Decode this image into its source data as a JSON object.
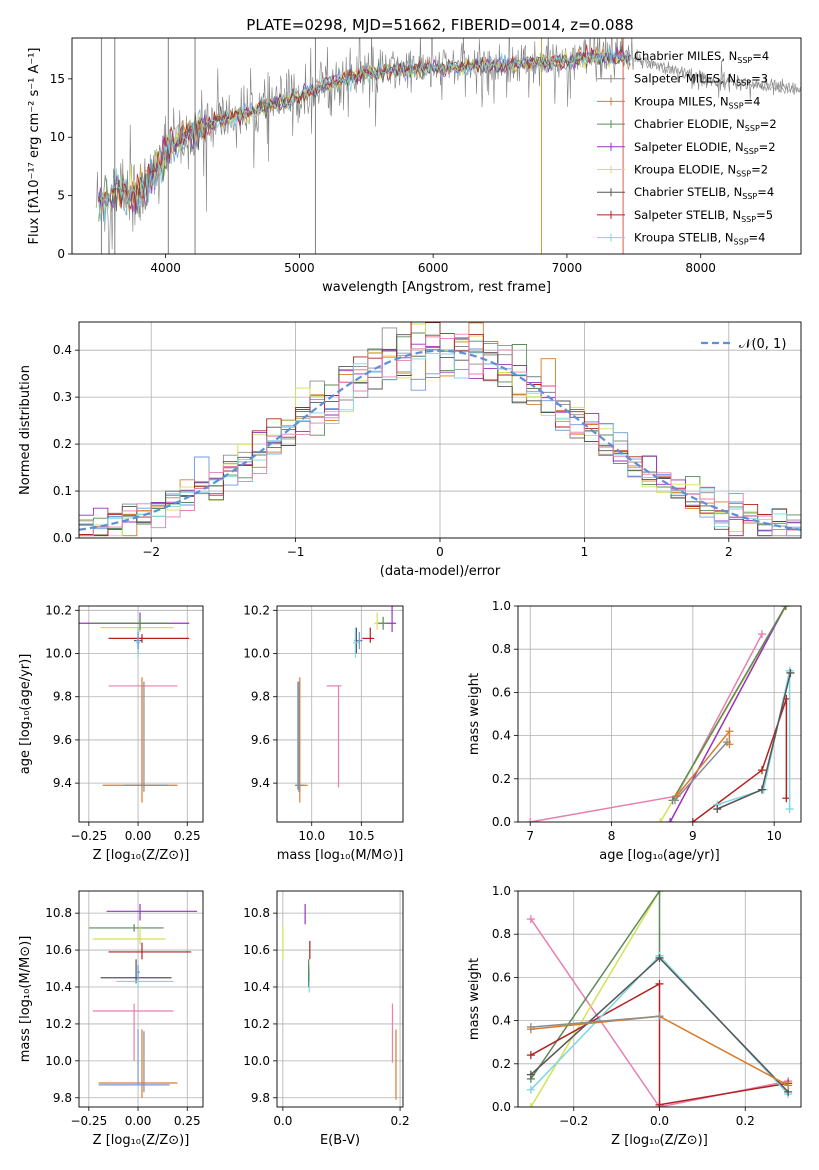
{
  "figure_title": "PLATE=0298, MJD=51662, FIBERID=0014, z=0.088",
  "colors": {
    "chabrier_miles": "#6d9be0",
    "salpeter_miles": "#8c8c8c",
    "kroupa_miles": "#d97c2d",
    "chabrier_elodie": "#5c8a5a",
    "salpeter_elodie": "#9933bb",
    "kroupa_elodie": "#d4e157",
    "chabrier_stelib": "#555555",
    "salpeter_stelib": "#b22222",
    "kroupa_stelib": "#7fd6e0",
    "gaussian": "#5b8fd9",
    "pink": "#e87fb0"
  },
  "chart_data": [
    {
      "id": "spectrum",
      "type": "line",
      "title": "PLATE=0298, MJD=51662, FIBERID=0014, z=0.088",
      "xlabel": "wavelength [Angstrom, rest frame]",
      "ylabel": "Flux [fλ10⁻¹⁷ erg cm⁻² s⁻¹ A⁻¹]",
      "xlim": [
        3300,
        8750
      ],
      "ylim": [
        0,
        18.5
      ],
      "xticks": [
        4000,
        5000,
        6000,
        7000,
        8000
      ],
      "yticks": [
        0,
        5,
        10,
        15
      ],
      "grid": false,
      "legend_position": "top-right",
      "legend": [
        {
          "label": "Chabrier MILES, N",
          "sub": "SSP",
          "suffix": "=4",
          "color": "#6d9be0"
        },
        {
          "label": "Salpeter MILES, N",
          "sub": "SSP",
          "suffix": "=3",
          "color": "#8c8c8c"
        },
        {
          "label": "Kroupa MILES, N",
          "sub": "SSP",
          "suffix": "=4",
          "color": "#d97c2d"
        },
        {
          "label": "Chabrier ELODIE, N",
          "sub": "SSP",
          "suffix": "=2",
          "color": "#5c8a5a"
        },
        {
          "label": "Salpeter ELODIE, N",
          "sub": "SSP",
          "suffix": "=2",
          "color": "#9933bb"
        },
        {
          "label": "Kroupa ELODIE, N",
          "sub": "SSP",
          "suffix": "=2",
          "color": "#d4e157"
        },
        {
          "label": "Chabrier STELIB, N",
          "sub": "SSP",
          "suffix": "=4",
          "color": "#555555"
        },
        {
          "label": "Salpeter STELIB, N",
          "sub": "SSP",
          "suffix": "=5",
          "color": "#b22222"
        },
        {
          "label": "Kroupa STELIB, N",
          "sub": "SSP",
          "suffix": "=4",
          "color": "#7fd6e0"
        }
      ],
      "continuum_trend": {
        "x": [
          3500,
          3650,
          3750,
          3850,
          3950,
          4050,
          4200,
          4400,
          4600,
          4800,
          5000,
          5200,
          5500,
          5800,
          6100,
          6400,
          6700,
          7000,
          7200,
          7400,
          7600,
          7800,
          8000,
          8200,
          8400,
          8600,
          8750
        ],
        "y": [
          4.5,
          5.5,
          5.0,
          5.5,
          7.5,
          9.5,
          10.5,
          11.5,
          12.0,
          12.8,
          13.5,
          14.5,
          15.5,
          15.8,
          16.0,
          16.1,
          16.3,
          16.5,
          16.8,
          16.9,
          16.4,
          15.8,
          15.0,
          14.8,
          14.5,
          14.2,
          14.0
        ]
      },
      "sky_lines": [
        3520,
        3620,
        4020,
        4220,
        5120,
        6810,
        7420
      ]
    },
    {
      "id": "residuals",
      "type": "area",
      "xlabel": "(data-model)/error",
      "ylabel": "Normed distribution",
      "xlim": [
        -2.5,
        2.5
      ],
      "ylim": [
        0,
        0.46
      ],
      "xticks": [
        -2,
        -1,
        0,
        1,
        2
      ],
      "yticks": [
        0.0,
        0.1,
        0.2,
        0.3,
        0.4
      ],
      "grid": true,
      "legend_position": "top-right",
      "legend_label": "𝒩(0, 1)",
      "gaussian": {
        "mean": 0,
        "sigma": 1
      },
      "bin_width": 0.1
    },
    {
      "id": "age_vs_Z",
      "type": "scatter",
      "xlabel": "Z [log₁₀(Z/Z⊙)]",
      "ylabel": "age  [log₁₀(age/yr)]",
      "xlim": [
        -0.3,
        0.33
      ],
      "ylim": [
        9.22,
        10.22
      ],
      "xticks": [
        -0.25,
        0.0,
        0.25
      ],
      "yticks": [
        9.4,
        9.6,
        9.8,
        10.0,
        10.2
      ],
      "grid": true,
      "points": [
        {
          "x": 0.01,
          "y": 10.14,
          "xerr": [
            0.31,
            0.25
          ],
          "yerr": [
            0.04,
            0.05
          ],
          "color": "#9933bb"
        },
        {
          "x": 0.01,
          "y": 10.12,
          "xerr": [
            0.2,
            0.17
          ],
          "yerr": [
            0.02,
            0.03
          ],
          "color": "#d4e157"
        },
        {
          "x": 0.01,
          "y": 10.14,
          "xerr": [
            0.25,
            0.15
          ],
          "yerr": [
            0.03,
            0.03
          ],
          "color": "#5c8a5a"
        },
        {
          "x": 0.02,
          "y": 10.07,
          "xerr": [
            0.17,
            0.24
          ],
          "yerr": [
            0.02,
            0.02
          ],
          "color": "#b22222"
        },
        {
          "x": 0.0,
          "y": 10.06,
          "xerr": [
            0.02,
            0.02
          ],
          "yerr": [
            0.06,
            0.06
          ],
          "color": "#555555"
        },
        {
          "x": 0.0,
          "y": 10.05,
          "xerr": [
            0.01,
            0.01
          ],
          "yerr": [
            0.07,
            0.07
          ],
          "color": "#7fd6e0"
        },
        {
          "x": 0.0,
          "y": 10.06,
          "xerr": [
            0.01,
            0.01
          ],
          "yerr": [
            0.04,
            0.04
          ],
          "color": "#6d9be0"
        },
        {
          "x": 0.02,
          "y": 9.85,
          "xerr": [
            0.17,
            0.18
          ],
          "yerr": [
            0.47,
            0.0
          ],
          "color": "#e87fb0"
        },
        {
          "x": 0.02,
          "y": 9.39,
          "xerr": [
            0.2,
            0.18
          ],
          "yerr": [
            0.08,
            0.5
          ],
          "color": "#d97c2d"
        },
        {
          "x": 0.03,
          "y": 9.39,
          "xerr": [
            0.1,
            0.12
          ],
          "yerr": [
            0.03,
            0.48
          ],
          "color": "#8c8c8c"
        }
      ]
    },
    {
      "id": "age_vs_mass",
      "type": "scatter",
      "xlabel": "mass [log₁₀(M/M⊙)]",
      "ylabel": "",
      "xlim": [
        9.65,
        10.92
      ],
      "ylim": [
        9.22,
        10.22
      ],
      "xticks": [
        10.0,
        10.5
      ],
      "yticks": [
        9.4,
        9.6,
        9.8,
        10.0,
        10.2
      ],
      "grid": true,
      "points": [
        {
          "x": 10.81,
          "y": 10.14,
          "xerr": [
            0.15,
            0.04
          ],
          "yerr": [
            0.04,
            0.25
          ],
          "color": "#9933bb"
        },
        {
          "x": 10.66,
          "y": 10.14,
          "xerr": [
            0.03,
            0.09
          ],
          "yerr": [
            0.03,
            0.05
          ],
          "color": "#d4e157"
        },
        {
          "x": 10.72,
          "y": 10.14,
          "xerr": [
            0.05,
            0.05
          ],
          "yerr": [
            0.03,
            0.03
          ],
          "color": "#5c8a5a"
        },
        {
          "x": 10.59,
          "y": 10.07,
          "xerr": [
            0.08,
            0.04
          ],
          "yerr": [
            0.02,
            0.05
          ],
          "color": "#b22222"
        },
        {
          "x": 10.45,
          "y": 10.06,
          "xerr": [
            0.02,
            0.06
          ],
          "yerr": [
            0.06,
            0.06
          ],
          "color": "#555555"
        },
        {
          "x": 10.44,
          "y": 10.05,
          "xerr": [
            0.02,
            0.04
          ],
          "yerr": [
            0.07,
            0.07
          ],
          "color": "#7fd6e0"
        },
        {
          "x": 10.48,
          "y": 10.06,
          "xerr": [
            0.02,
            0.02
          ],
          "yerr": [
            0.04,
            0.04
          ],
          "color": "#6d9be0"
        },
        {
          "x": 10.27,
          "y": 9.85,
          "xerr": [
            0.12,
            0.03
          ],
          "yerr": [
            0.47,
            0.0
          ],
          "color": "#e87fb0"
        },
        {
          "x": 9.88,
          "y": 9.39,
          "xerr": [
            0.05,
            0.08
          ],
          "yerr": [
            0.08,
            0.5
          ],
          "color": "#d97c2d"
        },
        {
          "x": 9.87,
          "y": 9.39,
          "xerr": [
            0.03,
            0.05
          ],
          "yerr": [
            0.03,
            0.48
          ],
          "color": "#8c8c8c"
        },
        {
          "x": 9.86,
          "y": 9.39,
          "xerr": [
            0.0,
            0.0
          ],
          "yerr": [
            0.02,
            0.48
          ],
          "color": "#6d9be0"
        }
      ]
    },
    {
      "id": "weight_vs_age",
      "type": "line",
      "xlabel": "age  [log₁₀(age/yr)]",
      "ylabel": "mass weight",
      "xlim": [
        6.85,
        10.33
      ],
      "ylim": [
        0,
        1
      ],
      "xticks": [
        7,
        8,
        9,
        10
      ],
      "yticks": [
        0.0,
        0.2,
        0.4,
        0.6,
        0.8,
        1.0
      ],
      "grid": true,
      "series": [
        {
          "color": "#e87fb0",
          "x": [
            7.0,
            8.8,
            9.85
          ],
          "y": [
            0.0,
            0.12,
            0.87
          ]
        },
        {
          "color": "#d4e157",
          "x": [
            8.6,
            10.15
          ],
          "y": [
            0.0,
            1.0
          ]
        },
        {
          "color": "#9933bb",
          "x": [
            8.72,
            10.14
          ],
          "y": [
            0.0,
            1.0
          ]
        },
        {
          "color": "#5c8a5a",
          "x": [
            8.75,
            10.14
          ],
          "y": [
            0.1,
            1.0
          ]
        },
        {
          "color": "#b22222",
          "x": [
            9.0,
            9.85,
            10.15,
            10.15
          ],
          "y": [
            0.0,
            0.24,
            0.57,
            0.11
          ]
        },
        {
          "color": "#7fd6e0",
          "x": [
            9.3,
            9.87,
            10.19,
            10.19
          ],
          "y": [
            0.08,
            0.15,
            0.7,
            0.06
          ]
        },
        {
          "color": "#555555",
          "x": [
            9.3,
            9.85,
            10.2
          ],
          "y": [
            0.06,
            0.15,
            0.69
          ]
        },
        {
          "color": "#d97c2d",
          "x": [
            8.8,
            9.45,
            9.45
          ],
          "y": [
            0.12,
            0.42,
            0.36
          ]
        },
        {
          "color": "#8c8c8c",
          "x": [
            8.78,
            9.42
          ],
          "y": [
            0.1,
            0.37
          ]
        }
      ]
    },
    {
      "id": "mass_vs_Z",
      "type": "scatter",
      "xlabel": "Z [log₁₀(Z/Z⊙)]",
      "ylabel": "mass [log₁₀(M/M⊙)]",
      "xlim": [
        -0.3,
        0.33
      ],
      "ylim": [
        9.75,
        10.92
      ],
      "xticks": [
        -0.25,
        0.0,
        0.25
      ],
      "yticks": [
        9.8,
        10.0,
        10.2,
        10.4,
        10.6,
        10.8
      ],
      "grid": true,
      "points": [
        {
          "x": 0.01,
          "y": 10.81,
          "xerr": [
            0.17,
            0.29
          ],
          "yerr": [
            0.05,
            0.04
          ],
          "color": "#9933bb"
        },
        {
          "x": -0.02,
          "y": 10.72,
          "xerr": [
            0.23,
            0.15
          ],
          "yerr": [
            0.02,
            0.02
          ],
          "color": "#5c8a5a"
        },
        {
          "x": 0.01,
          "y": 10.66,
          "xerr": [
            0.24,
            0.13
          ],
          "yerr": [
            0.03,
            0.07
          ],
          "color": "#d4e157"
        },
        {
          "x": 0.02,
          "y": 10.59,
          "xerr": [
            0.17,
            0.25
          ],
          "yerr": [
            0.04,
            0.05
          ],
          "color": "#b22222"
        },
        {
          "x": -0.01,
          "y": 10.45,
          "xerr": [
            0.18,
            0.18
          ],
          "yerr": [
            0.03,
            0.1
          ],
          "color": "#555555"
        },
        {
          "x": 0.0,
          "y": 10.43,
          "xerr": [
            0.11,
            0.18
          ],
          "yerr": [
            0.03,
            0.08
          ],
          "color": "#7fd6e0"
        },
        {
          "x": 0.0,
          "y": 10.48,
          "xerr": [
            0.01,
            0.01
          ],
          "yerr": [
            0.04,
            0.04
          ],
          "color": "#6d9be0"
        },
        {
          "x": -0.02,
          "y": 10.27,
          "xerr": [
            0.21,
            0.2
          ],
          "yerr": [
            0.27,
            0.04
          ],
          "color": "#e87fb0"
        },
        {
          "x": 0.02,
          "y": 9.88,
          "xerr": [
            0.22,
            0.18
          ],
          "yerr": [
            0.08,
            0.29
          ],
          "color": "#d97c2d"
        },
        {
          "x": 0.0,
          "y": 9.87,
          "xerr": [
            0.2,
            0.16
          ],
          "yerr": [
            0.0,
            0.3
          ],
          "color": "#6d9be0"
        },
        {
          "x": 0.03,
          "y": 9.86,
          "xerr": [
            0.0,
            0.0
          ],
          "yerr": [
            0.03,
            0.3
          ],
          "color": "#8c8c8c"
        }
      ]
    },
    {
      "id": "mass_vs_ebv",
      "type": "scatter",
      "xlabel": "E(B-V)",
      "ylabel": "",
      "xlim": [
        -0.01,
        0.205
      ],
      "ylim": [
        9.75,
        10.92
      ],
      "xticks": [
        0.0,
        0.2
      ],
      "yticks": [
        9.8,
        10.0,
        10.2,
        10.4,
        10.6,
        10.8
      ],
      "grid": true,
      "points": [
        {
          "x": 0.038,
          "y": 10.8,
          "xerr": [
            0,
            0
          ],
          "yerr": [
            0.06,
            0.05
          ],
          "color": "#9933bb"
        },
        {
          "x": 0.0,
          "y": 10.64,
          "xerr": [
            0,
            0
          ],
          "yerr": [
            0.09,
            0.09
          ],
          "color": "#d4e157"
        },
        {
          "x": 0.046,
          "y": 10.6,
          "xerr": [
            0,
            0
          ],
          "yerr": [
            0.05,
            0.05
          ],
          "color": "#b22222"
        },
        {
          "x": 0.044,
          "y": 10.46,
          "xerr": [
            0,
            0
          ],
          "yerr": [
            0.06,
            0.06
          ],
          "color": "#555555"
        },
        {
          "x": 0.045,
          "y": 10.43,
          "xerr": [
            0,
            0
          ],
          "yerr": [
            0.06,
            0.06
          ],
          "color": "#7fd6e0"
        },
        {
          "x": 0.044,
          "y": 10.49,
          "xerr": [
            0,
            0
          ],
          "yerr": [
            0.06,
            0.06
          ],
          "color": "#5c8a5a"
        },
        {
          "x": 0.187,
          "y": 10.15,
          "xerr": [
            0,
            0
          ],
          "yerr": [
            0.16,
            0.16
          ],
          "color": "#e87fb0"
        },
        {
          "x": 0.193,
          "y": 9.98,
          "xerr": [
            0,
            0
          ],
          "yerr": [
            0.19,
            0.19
          ],
          "color": "#d97c2d"
        }
      ]
    },
    {
      "id": "weight_vs_Z",
      "type": "line",
      "xlabel": "Z [log₁₀(Z/Z⊙)]",
      "ylabel": "mass weight",
      "xlim": [
        -0.33,
        0.33
      ],
      "ylim": [
        0,
        1
      ],
      "xticks": [
        -0.2,
        0.0,
        0.2
      ],
      "yticks": [
        0.0,
        0.2,
        0.4,
        0.6,
        0.8,
        1.0
      ],
      "grid": true,
      "series": [
        {
          "color": "#e87fb0",
          "x": [
            -0.3,
            0.0,
            0.3
          ],
          "y": [
            0.87,
            0.0,
            0.12
          ]
        },
        {
          "color": "#d4e157",
          "x": [
            -0.3,
            0.0
          ],
          "y": [
            0.0,
            1.0
          ]
        },
        {
          "color": "#5c8a5a",
          "x": [
            -0.3,
            0.0,
            0.0
          ],
          "y": [
            0.13,
            1.0,
            0.7
          ]
        },
        {
          "color": "#b22222",
          "x": [
            -0.3,
            0.0,
            0.0,
            0.3
          ],
          "y": [
            0.24,
            0.57,
            0.01,
            0.11
          ]
        },
        {
          "color": "#7fd6e0",
          "x": [
            -0.3,
            0.0,
            0.3
          ],
          "y": [
            0.08,
            0.7,
            0.06
          ]
        },
        {
          "color": "#555555",
          "x": [
            -0.3,
            0.0,
            0.3
          ],
          "y": [
            0.15,
            0.69,
            0.07
          ]
        },
        {
          "color": "#d97c2d",
          "x": [
            -0.3,
            0.0,
            0.3
          ],
          "y": [
            0.36,
            0.42,
            0.1
          ]
        },
        {
          "color": "#8c8c8c",
          "x": [
            -0.3,
            0.0
          ],
          "y": [
            0.37,
            0.42
          ]
        }
      ]
    }
  ]
}
